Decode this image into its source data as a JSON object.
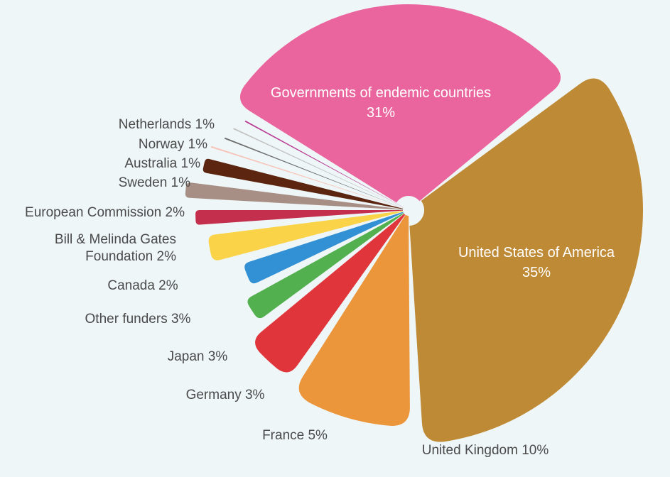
{
  "chart_data": {
    "type": "pie",
    "style": "exploded rounded radial wedges, wedge length proportional to share",
    "legend": "none",
    "slices": [
      {
        "name": "United States of America",
        "line1": "United States of America",
        "line2": "35%",
        "value": 35,
        "color": "#bf8a35"
      },
      {
        "name": "United Kingdom",
        "line1": "United Kingdom 10%",
        "line2": "",
        "value": 10,
        "color": "#ec963c"
      },
      {
        "name": "France",
        "line1": "France 5%",
        "line2": "",
        "value": 5,
        "color": "#e0353a"
      },
      {
        "name": "Germany",
        "line1": "Germany 3%",
        "line2": "",
        "value": 3,
        "color": "#53b04e"
      },
      {
        "name": "Japan",
        "line1": "Japan 3%",
        "line2": "",
        "value": 3,
        "color": "#3290d4"
      },
      {
        "name": "Other funders",
        "line1": "Other funders 3%",
        "line2": "",
        "value": 3,
        "color": "#fbd348"
      },
      {
        "name": "Canada",
        "line1": "Canada 2%",
        "line2": "",
        "value": 2,
        "color": "#c42f4e"
      },
      {
        "name": "Bill & Melinda Gates Foundation",
        "line1": "Bill & Melinda Gates",
        "line2": "Foundation 2%",
        "value": 2,
        "color": "#a88f86"
      },
      {
        "name": "European Commission",
        "line1": "European Commission 2%",
        "line2": "",
        "value": 2,
        "color": "#5b2510"
      },
      {
        "name": "Sweden",
        "line1": "Sweden 1%",
        "line2": "",
        "value": 1,
        "color": "#f7c3b8"
      },
      {
        "name": "Australia",
        "line1": "Australia 1%",
        "line2": "",
        "value": 1,
        "color": "#6f6f6f"
      },
      {
        "name": "Norway",
        "line1": "Norway 1%",
        "line2": "",
        "value": 1,
        "color": "#c3c3c3"
      },
      {
        "name": "Netherlands",
        "line1": "Netherlands 1%",
        "line2": "",
        "value": 1,
        "color": "#b83a93"
      },
      {
        "name": "Governments of endemic countries",
        "line1": "Governments of endemic countries",
        "line2": "31%",
        "value": 31,
        "color": "#ea649d"
      }
    ]
  }
}
